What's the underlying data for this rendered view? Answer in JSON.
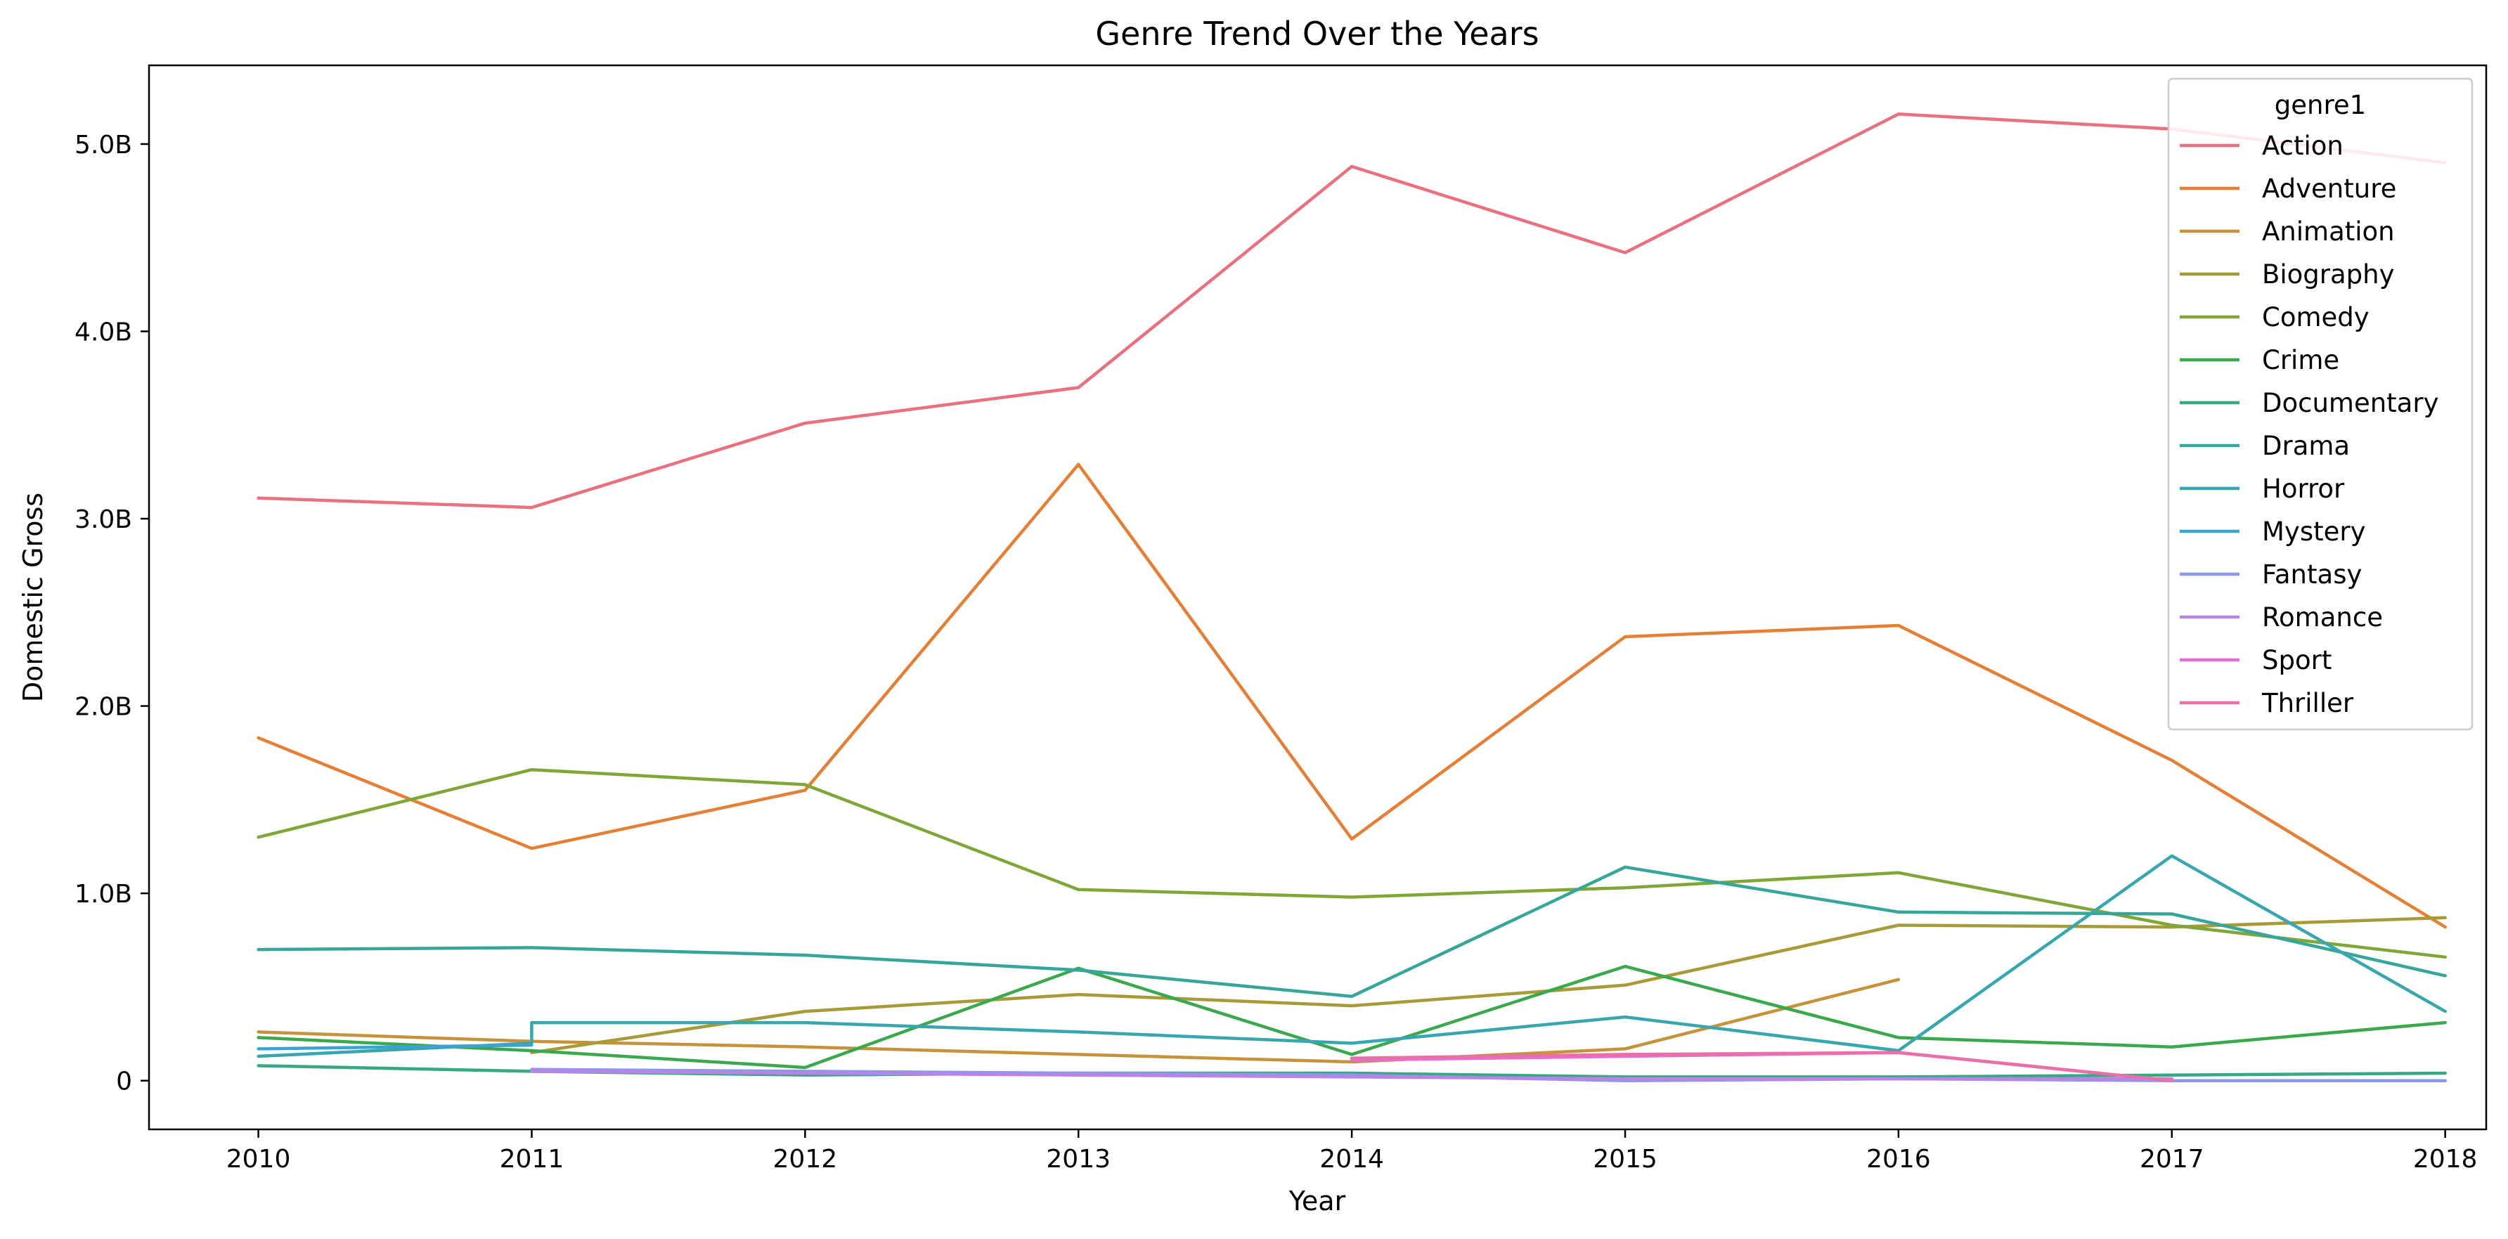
{
  "chart_data": {
    "type": "line",
    "title": "Genre Trend Over the Years",
    "xlabel": "Year",
    "ylabel": "Domestic Gross",
    "xlim": [
      2009.6,
      2018.15
    ],
    "ylim": [
      -260000000,
      5420000000
    ],
    "x_ticks": [
      2010,
      2011,
      2012,
      2013,
      2014,
      2015,
      2016,
      2017,
      2018
    ],
    "y_ticks": [
      0,
      1000000000,
      2000000000,
      3000000000,
      4000000000,
      5000000000
    ],
    "y_tick_labels": [
      "0",
      "1.0B",
      "2.0B",
      "3.0B",
      "4.0B",
      "5.0B"
    ],
    "grid": false,
    "legend": {
      "title": "genre1",
      "placement": "upper right"
    },
    "series": [
      {
        "name": "Action",
        "color": "#e8707f",
        "points": [
          [
            2010,
            3110000000
          ],
          [
            2011,
            3060000000
          ],
          [
            2012,
            3510000000
          ],
          [
            2013,
            3700000000
          ],
          [
            2014,
            4880000000
          ],
          [
            2015,
            4420000000
          ],
          [
            2016,
            5160000000
          ],
          [
            2017,
            5080000000
          ],
          [
            2018,
            4900000000
          ]
        ]
      },
      {
        "name": "Adventure",
        "color": "#e57f36",
        "points": [
          [
            2010,
            1830000000
          ],
          [
            2011,
            1240000000
          ],
          [
            2012,
            1550000000
          ],
          [
            2013,
            3290000000
          ],
          [
            2014,
            1290000000
          ],
          [
            2015,
            2370000000
          ],
          [
            2016,
            2430000000
          ],
          [
            2017,
            1710000000
          ],
          [
            2018,
            820000000
          ]
        ]
      },
      {
        "name": "Animation",
        "color": "#c7933a",
        "points": [
          [
            2010,
            260000000
          ],
          [
            2011,
            210000000
          ],
          [
            2012,
            180000000
          ],
          [
            2013,
            140000000
          ],
          [
            2014,
            100000000
          ],
          [
            2015,
            170000000
          ],
          [
            2016,
            540000000
          ]
        ]
      },
      {
        "name": "Biography",
        "color": "#a89a36",
        "points": [
          [
            2011,
            150000000
          ],
          [
            2012,
            370000000
          ],
          [
            2013,
            460000000
          ],
          [
            2014,
            400000000
          ],
          [
            2015,
            510000000
          ],
          [
            2016,
            830000000
          ],
          [
            2017,
            820000000
          ],
          [
            2018,
            870000000
          ]
        ]
      },
      {
        "name": "Comedy",
        "color": "#7fa636",
        "points": [
          [
            2010,
            1300000000
          ],
          [
            2011,
            1660000000
          ],
          [
            2012,
            1580000000
          ],
          [
            2013,
            1020000000
          ],
          [
            2014,
            980000000
          ],
          [
            2015,
            1030000000
          ],
          [
            2016,
            1110000000
          ],
          [
            2017,
            830000000
          ],
          [
            2018,
            660000000
          ]
        ]
      },
      {
        "name": "Crime",
        "color": "#3aa84d",
        "points": [
          [
            2010,
            230000000
          ],
          [
            2011,
            160000000
          ],
          [
            2012,
            70000000
          ],
          [
            2013,
            600000000
          ],
          [
            2014,
            140000000
          ],
          [
            2015,
            610000000
          ],
          [
            2016,
            230000000
          ],
          [
            2017,
            180000000
          ],
          [
            2018,
            310000000
          ]
        ]
      },
      {
        "name": "Documentary",
        "color": "#36a883",
        "points": [
          [
            2010,
            80000000
          ],
          [
            2011,
            50000000
          ],
          [
            2012,
            30000000
          ],
          [
            2013,
            40000000
          ],
          [
            2014,
            40000000
          ],
          [
            2015,
            20000000
          ],
          [
            2016,
            20000000
          ],
          [
            2017,
            30000000
          ],
          [
            2018,
            40000000
          ]
        ]
      },
      {
        "name": "Drama",
        "color": "#36a69a",
        "points": [
          [
            2010,
            700000000
          ],
          [
            2011,
            710000000
          ],
          [
            2012,
            670000000
          ],
          [
            2013,
            590000000
          ],
          [
            2014,
            450000000
          ],
          [
            2015,
            1140000000
          ],
          [
            2016,
            900000000
          ],
          [
            2017,
            890000000
          ],
          [
            2018,
            560000000
          ]
        ]
      },
      {
        "name": "Horror",
        "color": "#38a6ae",
        "points": [
          [
            2010,
            130000000
          ],
          [
            2011,
            200000000
          ],
          [
            2011,
            310000000
          ],
          [
            2012,
            310000000
          ],
          [
            2013,
            260000000
          ],
          [
            2014,
            200000000
          ],
          [
            2015,
            340000000
          ],
          [
            2016,
            160000000
          ],
          [
            2017,
            1200000000
          ],
          [
            2018,
            370000000
          ]
        ]
      },
      {
        "name": "Mystery",
        "color": "#3ba3d3",
        "points": [
          [
            2010,
            170000000
          ],
          [
            2011,
            190000000
          ]
        ]
      },
      {
        "name": "Fantasy",
        "color": "#8e96e8",
        "points": [
          [
            2011,
            60000000
          ],
          [
            2012,
            50000000
          ],
          [
            2013,
            40000000
          ],
          [
            2014,
            30000000
          ],
          [
            2015,
            0
          ],
          [
            2016,
            10000000
          ],
          [
            2017,
            0
          ],
          [
            2018,
            0
          ]
        ]
      },
      {
        "name": "Romance",
        "color": "#bb83e8",
        "points": [
          [
            2011,
            50000000
          ],
          [
            2012,
            40000000
          ],
          [
            2013,
            30000000
          ],
          [
            2014,
            20000000
          ],
          [
            2015,
            10000000
          ],
          [
            2016,
            10000000
          ],
          [
            2017,
            10000000
          ]
        ]
      },
      {
        "name": "Sport",
        "color": "#e36ed6",
        "points": [
          [
            2014,
            110000000
          ],
          [
            2015,
            130000000
          ],
          [
            2016,
            150000000
          ],
          [
            2017,
            0
          ]
        ]
      },
      {
        "name": "Thriller",
        "color": "#eb6fa6",
        "points": [
          [
            2014,
            120000000
          ],
          [
            2015,
            140000000
          ],
          [
            2016,
            150000000
          ],
          [
            2017,
            0
          ]
        ]
      }
    ]
  }
}
